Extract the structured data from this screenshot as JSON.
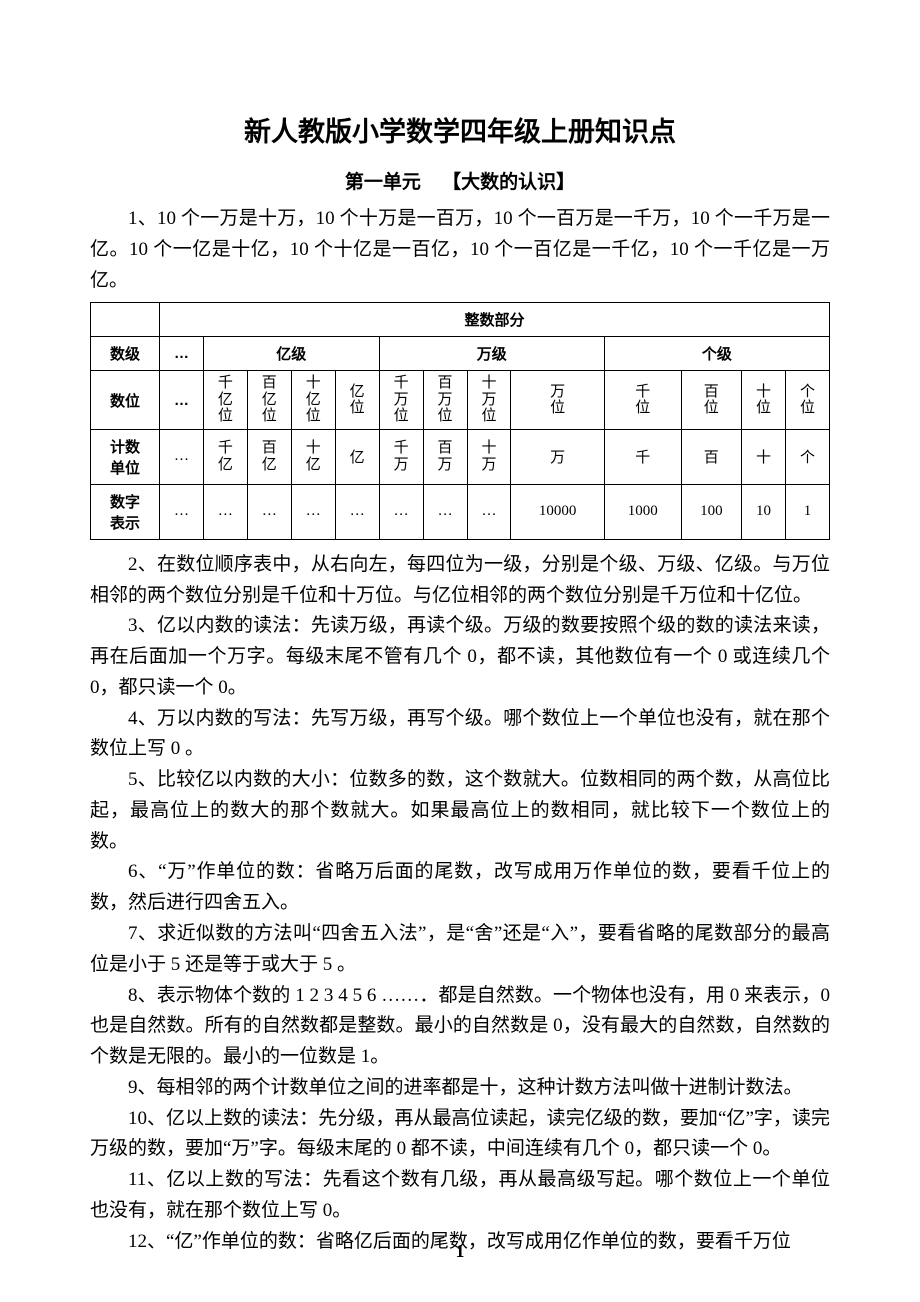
{
  "title": "新人教版小学数学四年级上册知识点",
  "subtitle_prefix": "第一单元",
  "subtitle_name": "【大数的认识】",
  "para1": "1、10 个一万是十万，10 个十万是一百万，10 个一百万是一千万，10 个一千万是一亿。10 个一亿是十亿，10 个十亿是一百亿，10 个一百亿是一千亿，10 个一千亿是一万亿。",
  "table": {
    "header_span": "整数部分",
    "ellipsis": "…",
    "levels": [
      "亿级",
      "万级",
      "个级"
    ],
    "row_labels": [
      "数级",
      "数位",
      "计数单位",
      "数字表示"
    ],
    "positions": [
      "千亿位",
      "百亿位",
      "十亿位",
      "亿位",
      "千万位",
      "百万位",
      "十万位",
      "万位",
      "千位",
      "百位",
      "十位",
      "个位"
    ],
    "units": [
      "千亿",
      "百亿",
      "十亿",
      "亿",
      "千万",
      "百万",
      "十万",
      "万",
      "千",
      "百",
      "十",
      "个"
    ],
    "values": [
      "…",
      "…",
      "…",
      "…",
      "…",
      "…",
      "…",
      "10000",
      "1000",
      "100",
      "10",
      "1"
    ]
  },
  "para2": "2、在数位顺序表中，从右向左，每四位为一级，分别是个级、万级、亿级。与万位相邻的两个数位分别是千位和十万位。与亿位相邻的两个数位分别是千万位和十亿位。",
  "para3": "3、亿以内数的读法：先读万级，再读个级。万级的数要按照个级的数的读法来读，再在后面加一个万字。每级末尾不管有几个 0，都不读，其他数位有一个 0 或连续几个 0，都只读一个 0。",
  "para4": "4、万以内数的写法：先写万级，再写个级。哪个数位上一个单位也没有，就在那个数位上写 0 。",
  "para5": "5、比较亿以内数的大小：位数多的数，这个数就大。位数相同的两个数，从高位比起，最高位上的数大的那个数就大。如果最高位上的数相同，就比较下一个数位上的数。",
  "para6": "6、“万”作单位的数：省略万后面的尾数，改写成用万作单位的数，要看千位上的数，然后进行四舍五入。",
  "para7": "7、求近似数的方法叫“四舍五入法”，是“舍”还是“入”，要看省略的尾数部分的最高位是小于 5 还是等于或大于 5 。",
  "para8": "8、表示物体个数的 1  2  3  4  5  6 ……．都是自然数。一个物体也没有，用 0 来表示，0 也是自然数。所有的自然数都是整数。最小的自然数是 0，没有最大的自然数，自然数的个数是无限的。最小的一位数是 1。",
  "para9": "9、每相邻的两个计数单位之间的进率都是十，这种计数方法叫做十进制计数法。",
  "para10": "10、亿以上数的读法：先分级，再从最高位读起，读完亿级的数，要加“亿”字，读完万级的数，要加“万”字。每级末尾的 0 都不读，中间连续有几个 0，都只读一个 0。",
  "para11": "11、亿以上数的写法：先看这个数有几级，再从最高级写起。哪个数位上一个单位也没有，就在那个数位上写 0。",
  "para12": "12、“亿”作单位的数：省略亿后面的尾数，改写成用亿作单位的数，要看千万位",
  "page_number": "1"
}
